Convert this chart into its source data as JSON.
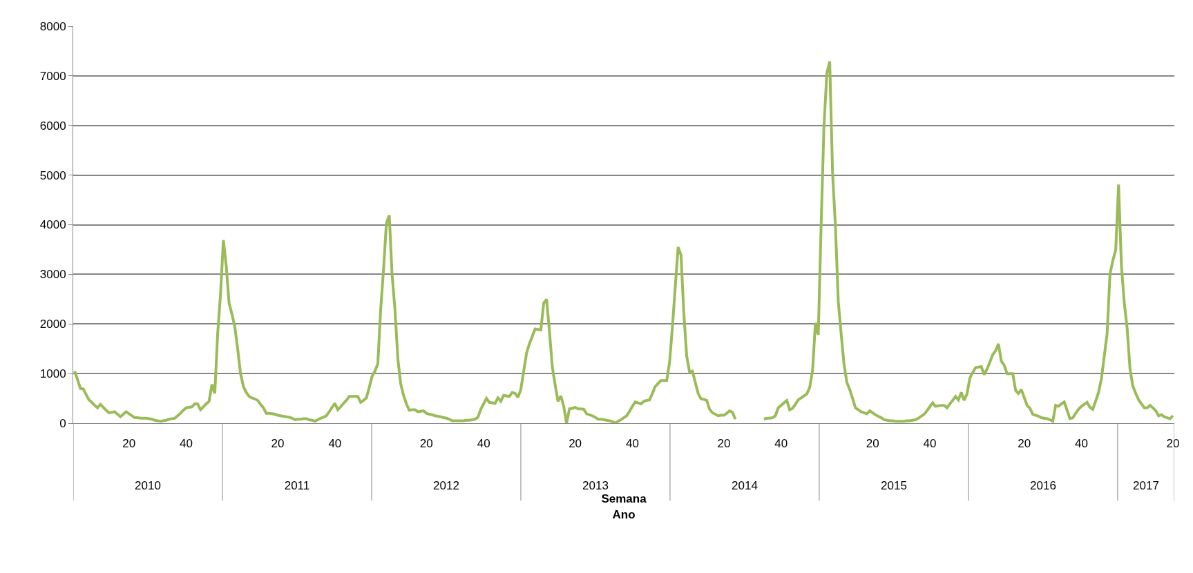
{
  "chart_data": {
    "type": "line",
    "xlabel": "Semana\nAno",
    "grid": "y",
    "marker": "none",
    "line_style": "solid",
    "ylim": [
      0,
      8000
    ],
    "yticks": [
      0,
      1000,
      2000,
      3000,
      4000,
      5000,
      6000,
      7000,
      8000
    ],
    "categories": [
      null,
      null,
      null,
      null,
      null,
      null,
      null,
      null,
      null,
      null,
      null,
      null,
      null,
      null,
      null,
      null,
      null,
      null,
      null,
      "20",
      null,
      null,
      null,
      null,
      null,
      null,
      null,
      null,
      null,
      null,
      null,
      null,
      null,
      null,
      null,
      null,
      null,
      null,
      null,
      "40",
      null,
      null,
      null,
      null,
      null,
      null,
      null,
      null,
      null,
      null,
      null,
      null,
      null,
      null,
      null,
      null,
      null,
      null,
      null,
      null,
      null,
      null,
      null,
      null,
      null,
      null,
      null,
      null,
      null,
      null,
      null,
      "20",
      null,
      null,
      null,
      null,
      null,
      null,
      null,
      null,
      null,
      null,
      null,
      null,
      null,
      null,
      null,
      null,
      null,
      null,
      null,
      "40",
      null,
      null,
      null,
      null,
      null,
      null,
      null,
      null,
      null,
      null,
      null,
      null,
      null,
      null,
      null,
      null,
      null,
      null,
      null,
      null,
      null,
      null,
      null,
      null,
      null,
      null,
      null,
      null,
      null,
      null,
      null,
      "20",
      null,
      null,
      null,
      null,
      null,
      null,
      null,
      null,
      null,
      null,
      null,
      null,
      null,
      null,
      null,
      null,
      null,
      null,
      null,
      "40",
      null,
      null,
      null,
      null,
      null,
      null,
      null,
      null,
      null,
      null,
      null,
      null,
      null,
      null,
      null,
      null,
      null,
      null,
      null,
      null,
      null,
      null,
      null,
      null,
      null,
      null,
      null,
      null,
      null,
      null,
      null,
      "20",
      null,
      null,
      null,
      null,
      null,
      null,
      null,
      null,
      null,
      null,
      null,
      null,
      null,
      null,
      null,
      null,
      null,
      null,
      null,
      "40",
      null,
      null,
      null,
      null,
      null,
      null,
      null,
      null,
      null,
      null,
      null,
      null,
      null,
      null,
      null,
      null,
      null,
      null,
      null,
      null,
      null,
      null,
      null,
      null,
      null,
      null,
      null,
      null,
      null,
      null,
      null,
      "20",
      null,
      null,
      null,
      null,
      null,
      null,
      null,
      null,
      null,
      null,
      null,
      null,
      null,
      null,
      null,
      null,
      null,
      null,
      null,
      "40",
      null,
      null,
      null,
      null,
      null,
      null,
      null,
      null,
      null,
      null,
      null,
      null,
      null,
      null,
      null,
      null,
      null,
      null,
      null,
      null,
      null,
      null,
      null,
      null,
      null,
      null,
      null,
      null,
      null,
      null,
      null,
      "20",
      null,
      null,
      null,
      null,
      null,
      null,
      null,
      null,
      null,
      null,
      null,
      null,
      null,
      null,
      null,
      null,
      null,
      null,
      null,
      "40",
      null,
      null,
      null,
      null,
      null,
      null,
      null,
      null,
      null,
      null,
      null,
      null,
      null,
      null,
      null,
      null,
      null,
      null,
      null,
      null,
      null,
      null,
      null,
      null,
      null,
      null,
      null,
      null,
      null,
      null,
      null,
      null,
      "20",
      null,
      null,
      null,
      null,
      null,
      null,
      null,
      null,
      null,
      null,
      null,
      null,
      null,
      null,
      null,
      null,
      null,
      null,
      null,
      "40",
      null,
      null,
      null,
      null,
      null,
      null,
      null,
      null,
      null,
      null,
      null,
      null,
      null,
      null,
      null,
      null,
      null,
      null,
      null,
      null,
      null,
      null,
      null,
      null,
      null,
      null,
      null,
      null,
      null,
      null,
      null,
      "20"
    ],
    "x2lim": [
      2010,
      2017.38
    ],
    "x2ticks": [
      {
        "value": 2010.5,
        "label": "2010"
      },
      {
        "value": 2011.5,
        "label": "2011"
      },
      {
        "value": 2012.5,
        "label": "2012"
      },
      {
        "value": 2013.5,
        "label": "2013"
      },
      {
        "value": 2014.5,
        "label": "2014"
      },
      {
        "value": 2015.5,
        "label": "2015"
      },
      {
        "value": 2016.5,
        "label": "2016"
      },
      {
        "value": 2017.19,
        "label": "2017"
      }
    ],
    "series": [
      {
        "color": "#9bbb59",
        "values": [
          1050,
          880,
          700,
          690,
          580,
          470,
          420,
          360,
          310,
          380,
          320,
          260,
          210,
          220,
          230,
          180,
          130,
          180,
          230,
          190,
          150,
          110,
          110,
          100,
          100,
          100,
          90,
          80,
          60,
          50,
          40,
          50,
          60,
          80,
          90,
          100,
          150,
          200,
          260,
          310,
          320,
          330,
          390,
          390,
          270,
          330,
          390,
          440,
          780,
          600,
          1800,
          2600,
          3690,
          3170,
          2420,
          2200,
          1940,
          1500,
          1000,
          740,
          620,
          540,
          510,
          490,
          460,
          380,
          310,
          200,
          200,
          190,
          180,
          160,
          150,
          140,
          130,
          120,
          100,
          70,
          80,
          80,
          90,
          90,
          70,
          60,
          40,
          70,
          100,
          120,
          150,
          230,
          320,
          400,
          270,
          330,
          400,
          460,
          540,
          540,
          540,
          540,
          420,
          460,
          510,
          720,
          950,
          1050,
          1200,
          2290,
          3100,
          4030,
          4190,
          2980,
          2290,
          1300,
          790,
          560,
          390,
          260,
          270,
          270,
          230,
          240,
          250,
          200,
          180,
          170,
          150,
          140,
          130,
          110,
          100,
          80,
          50,
          50,
          50,
          50,
          50,
          60,
          60,
          70,
          80,
          120,
          280,
          390,
          500,
          420,
          410,
          400,
          510,
          440,
          560,
          550,
          540,
          620,
          600,
          520,
          680,
          1050,
          1410,
          1600,
          1750,
          1900,
          1890,
          1880,
          2420,
          2500,
          1860,
          1140,
          770,
          440,
          550,
          340,
          0,
          290,
          300,
          320,
          290,
          290,
          280,
          190,
          170,
          150,
          120,
          80,
          80,
          70,
          60,
          50,
          30,
          0,
          40,
          70,
          110,
          150,
          240,
          340,
          430,
          410,
          390,
          440,
          460,
          470,
          600,
          740,
          800,
          860,
          860,
          860,
          1220,
          1940,
          2750,
          3550,
          3390,
          2210,
          1350,
          1030,
          1050,
          820,
          600,
          490,
          480,
          460,
          280,
          210,
          180,
          150,
          160,
          160,
          200,
          250,
          220,
          80,
          null,
          null,
          null,
          null,
          null,
          null,
          null,
          null,
          null,
          80,
          100,
          100,
          110,
          150,
          310,
          360,
          410,
          460,
          270,
          300,
          380,
          470,
          510,
          550,
          590,
          720,
          1060,
          2020,
          1780,
          4000,
          6000,
          7050,
          7290,
          5040,
          3970,
          2450,
          1800,
          1190,
          820,
          680,
          500,
          310,
          270,
          230,
          210,
          190,
          250,
          210,
          170,
          140,
          110,
          70,
          60,
          50,
          50,
          40,
          40,
          40,
          40,
          50,
          50,
          60,
          70,
          100,
          140,
          180,
          250,
          330,
          410,
          340,
          350,
          360,
          360,
          310,
          390,
          460,
          540,
          470,
          620,
          460,
          590,
          910,
          1020,
          1120,
          1130,
          1140,
          980,
          1090,
          1230,
          1380,
          1460,
          1600,
          1250,
          1170,
          1000,
          1000,
          1000,
          660,
          600,
          680,
          520,
          360,
          300,
          180,
          160,
          140,
          110,
          100,
          90,
          70,
          40,
          360,
          340,
          390,
          430,
          260,
          90,
          110,
          200,
          280,
          340,
          380,
          420,
          320,
          280,
          450,
          620,
          900,
          1350,
          1810,
          3010,
          3280,
          3490,
          4810,
          3170,
          2420,
          1910,
          1090,
          740,
          600,
          470,
          390,
          310,
          310,
          360,
          310,
          250,
          150,
          170,
          130,
          110,
          90,
          150
        ]
      }
    ]
  }
}
